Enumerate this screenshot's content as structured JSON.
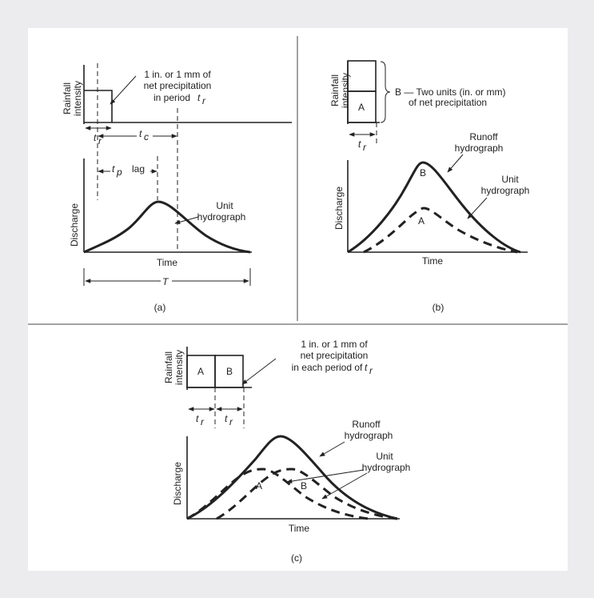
{
  "panel_a": {
    "rainfall_line1": "Rainfall",
    "rainfall_line2": "intensity",
    "note_line1": "1 in. or 1 mm of",
    "note_line2": "net precipitation",
    "note_line3": "in period",
    "note_var": "t",
    "note_sub": "r",
    "tr_var": "t",
    "tr_sub": "r",
    "tc_var": "t",
    "tc_sub": "c",
    "tp_var": "t",
    "tp_sub": "p",
    "lag": "lag",
    "discharge": "Discharge",
    "unit_line1": "Unit",
    "unit_line2": "hydrograph",
    "time": "Time",
    "T": "T",
    "caption": "(a)"
  },
  "panel_b": {
    "rainfall_line1": "Rainfall",
    "rainfall_line2": "intensity",
    "block_A": "A",
    "brace_line1": "B — Two units (in. or mm)",
    "brace_line2": "of net precipitation",
    "tr_var": "t",
    "tr_sub": "r",
    "discharge": "Discharge",
    "runoff_line1": "Runoff",
    "runoff_line2": "hydrograph",
    "unit_line1": "Unit",
    "unit_line2": "hydrograph",
    "curve_B": "B",
    "curve_A": "A",
    "time": "Time",
    "caption": "(b)"
  },
  "panel_c": {
    "rainfall_line1": "Rainfall",
    "rainfall_line2": "intensity",
    "block_A": "A",
    "block_B": "B",
    "note_line1": "1 in. or 1 mm of",
    "note_line2": "net precipitation",
    "note_line3": "in each period of",
    "note_var": "t",
    "note_sub": "r",
    "tr1_var": "t",
    "tr1_sub": "r",
    "tr2_var": "t",
    "tr2_sub": "r",
    "discharge": "Discharge",
    "runoff_line1": "Runoff",
    "runoff_line2": "hydrograph",
    "unit_line1": "Unit",
    "unit_line2": "hydrograph",
    "curve_A": "A",
    "curve_B": "B",
    "time": "Time",
    "caption": "(c)"
  }
}
